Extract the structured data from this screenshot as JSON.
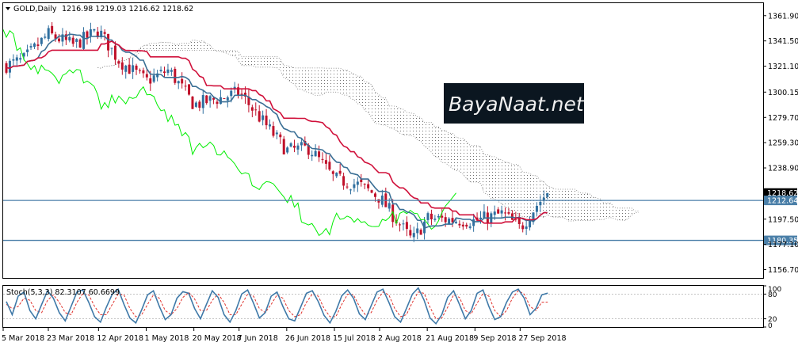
{
  "header": {
    "symbol_label": "GOLD,Daily",
    "ohlc_label": "1216.98 1219.03 1216.62 1218.62"
  },
  "watermark": {
    "text": "BayaNaat.net"
  },
  "colors": {
    "background": "#ffffff",
    "axis": "#000000",
    "candle_up": "#2f6f9f",
    "candle_down": "#c0112a",
    "tenkan": "#3a6f95",
    "kijun": "#d0103a",
    "chikou": "#00ee00",
    "cloud": "#808080",
    "level_line": "#4a7fa8",
    "level_box": "#4a7fa8",
    "current_box": "#000000",
    "stoch_main": "#3f79a8",
    "stoch_signal": "#e0302a",
    "watermark_bg": "#0b1620",
    "watermark_text": "#f0f0f0"
  },
  "chart_data": [
    {
      "type": "candlestick",
      "title": "GOLD,Daily",
      "ylim": [
        1150.0,
        1372.0
      ],
      "y_ticks": [
        "1361.90",
        "1341.50",
        "1321.10",
        "1300.15",
        "1279.70",
        "1259.30",
        "1238.90",
        "1218.62",
        "1212.64",
        "1197.50",
        "1180.35",
        "1177.10",
        "1156.70"
      ],
      "x_ticks": [
        "5 Mar 2018",
        "23 Mar 2018",
        "12 Apr 2018",
        "1 May 2018",
        "20 May 2018",
        "7 Jun 2018",
        "26 Jun 2018",
        "15 Jul 2018",
        "2 Aug 2018",
        "21 Aug 2018",
        "9 Sep 2018",
        "27 Sep 2018"
      ],
      "current_price": 1218.62,
      "horizontal_levels": [
        1212.64,
        1180.35
      ],
      "close_path": [
        [
          "5 Mar 2018",
          1321
        ],
        [
          "13 Mar 2018",
          1326
        ],
        [
          "23 Mar 2018",
          1347
        ],
        [
          "2 Apr 2018",
          1338
        ],
        [
          "12 Apr 2018",
          1350
        ],
        [
          "20 Apr 2018",
          1326
        ],
        [
          "1 May 2018",
          1309
        ],
        [
          "10 May 2018",
          1318
        ],
        [
          "20 May 2018",
          1290
        ],
        [
          "1 Jun 2018",
          1296
        ],
        [
          "7 Jun 2018",
          1300
        ],
        [
          "15 Jun 2018",
          1280
        ],
        [
          "26 Jun 2018",
          1253
        ],
        [
          "5 Jul 2018",
          1255
        ],
        [
          "15 Jul 2018",
          1230
        ],
        [
          "25 Jul 2018",
          1225
        ],
        [
          "2 Aug 2018",
          1215
        ],
        [
          "15 Aug 2018",
          1180
        ],
        [
          "21 Aug 2018",
          1198
        ],
        [
          "9 Sep 2018",
          1196
        ],
        [
          "20 Sep 2018",
          1202
        ],
        [
          "27 Sep 2018",
          1190
        ],
        [
          "4 Oct 2018",
          1210
        ],
        [
          "8 Oct 2018",
          1218.62
        ]
      ],
      "series": [
        {
          "name": "",
          "kind": "tenkan"
        },
        {
          "name": "",
          "kind": "kijun"
        },
        {
          "name": "",
          "kind": "chikou"
        }
      ]
    },
    {
      "type": "line",
      "title": "Stoch(5,3,3) 82.3107 60.6699",
      "ylim": [
        0,
        100
      ],
      "y_ticks": [
        "100",
        "80",
        "20",
        "0"
      ],
      "levels": [
        80,
        20
      ],
      "series": [
        {
          "name": "",
          "values": [
            62,
            30,
            75,
            85,
            40,
            20,
            55,
            88,
            70,
            35,
            15,
            50,
            85,
            90,
            60,
            25,
            12,
            48,
            80,
            92,
            55,
            22,
            10,
            42,
            78,
            88,
            50,
            18,
            30,
            70,
            86,
            82,
            45,
            20,
            55,
            88,
            72,
            30,
            12,
            40,
            80,
            90,
            58,
            22,
            35,
            75,
            85,
            50,
            20,
            15,
            48,
            82,
            88,
            62,
            28,
            10,
            38,
            76,
            90,
            70,
            32,
            18,
            52,
            85,
            92,
            60,
            25,
            12,
            45,
            80,
            95,
            65,
            22,
            8,
            30,
            72,
            88,
            55,
            20,
            40,
            82,
            90,
            50,
            18,
            25,
            60,
            85,
            92,
            70,
            30,
            45,
            78,
            82.31
          ]
        },
        {
          "name": "",
          "values": [
            55,
            45,
            50,
            70,
            65,
            40,
            35,
            65,
            78,
            60,
            35,
            30,
            60,
            82,
            78,
            50,
            30,
            30,
            55,
            80,
            78,
            45,
            25,
            30,
            55,
            78,
            70,
            40,
            30,
            45,
            72,
            84,
            68,
            40,
            40,
            65,
            80,
            60,
            30,
            30,
            55,
            80,
            75,
            45,
            35,
            55,
            78,
            70,
            40,
            25,
            30,
            60,
            80,
            75,
            45,
            25,
            25,
            55,
            80,
            78,
            50,
            30,
            35,
            65,
            85,
            78,
            45,
            25,
            30,
            60,
            85,
            82,
            48,
            20,
            22,
            48,
            78,
            72,
            40,
            32,
            58,
            82,
            75,
            40,
            25,
            40,
            70,
            88,
            80,
            50,
            40,
            60,
            60.67
          ]
        }
      ]
    }
  ]
}
